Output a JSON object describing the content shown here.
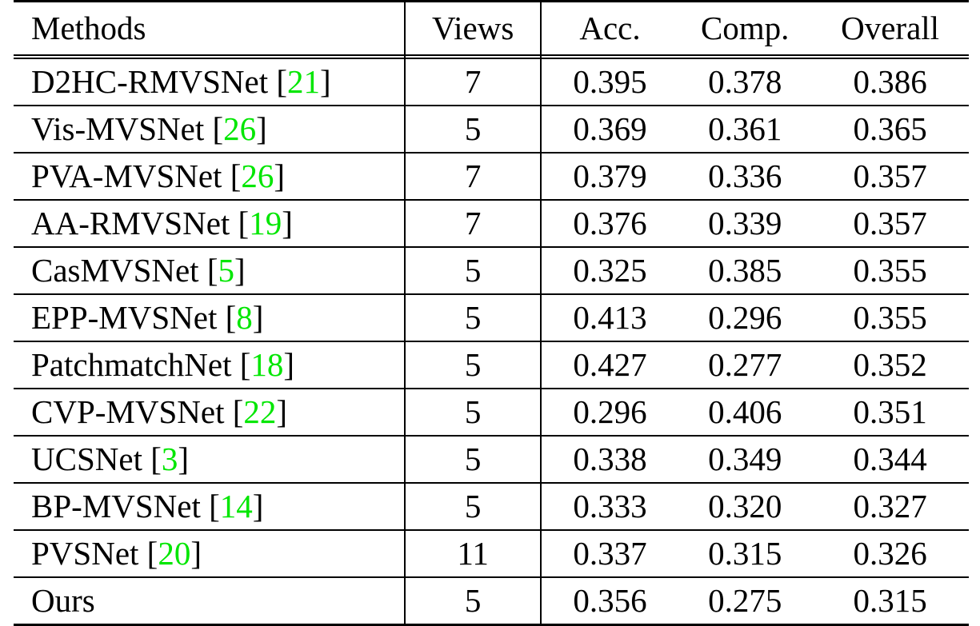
{
  "table": {
    "headers": {
      "methods": "Methods",
      "views": "Views",
      "acc": "Acc.",
      "comp": "Comp.",
      "overall": "Overall"
    },
    "citation_color": "#00e600",
    "rows": [
      {
        "method": "D2HC-RMVSNet",
        "ref": "21",
        "views": "7",
        "acc": "0.395",
        "comp": "0.378",
        "overall": "0.386",
        "bold": []
      },
      {
        "method": "Vis-MVSNet",
        "ref": "26",
        "views": "5",
        "acc": "0.369",
        "comp": "0.361",
        "overall": "0.365",
        "bold": []
      },
      {
        "method": "PVA-MVSNet",
        "ref": "26",
        "views": "7",
        "acc": "0.379",
        "comp": "0.336",
        "overall": "0.357",
        "bold": []
      },
      {
        "method": "AA-RMVSNet",
        "ref": "19",
        "views": "7",
        "acc": "0.376",
        "comp": "0.339",
        "overall": "0.357",
        "bold": []
      },
      {
        "method": "CasMVSNet",
        "ref": "5",
        "views": "5",
        "acc": "0.325",
        "comp": "0.385",
        "overall": "0.355",
        "bold": []
      },
      {
        "method": "EPP-MVSNet",
        "ref": "8",
        "views": "5",
        "acc": "0.413",
        "comp": "0.296",
        "overall": "0.355",
        "bold": []
      },
      {
        "method": "PatchmatchNet",
        "ref": "18",
        "views": "5",
        "acc": "0.427",
        "comp": "0.277",
        "overall": "0.352",
        "bold": []
      },
      {
        "method": "CVP-MVSNet",
        "ref": "22",
        "views": "5",
        "acc": "0.296",
        "comp": "0.406",
        "overall": "0.351",
        "bold": [
          "acc"
        ]
      },
      {
        "method": "UCSNet",
        "ref": "3",
        "views": "5",
        "acc": "0.338",
        "comp": "0.349",
        "overall": "0.344",
        "bold": []
      },
      {
        "method": "BP-MVSNet",
        "ref": "14",
        "views": "5",
        "acc": "0.333",
        "comp": "0.320",
        "overall": "0.327",
        "bold": []
      },
      {
        "method": "PVSNet",
        "ref": "20",
        "views": "11",
        "acc": "0.337",
        "comp": "0.315",
        "overall": "0.326",
        "bold": []
      },
      {
        "method": "Ours",
        "ref": "",
        "views": "5",
        "acc": "0.356",
        "comp": "0.275",
        "overall": "0.315",
        "bold": [
          "comp",
          "overall"
        ]
      }
    ]
  }
}
